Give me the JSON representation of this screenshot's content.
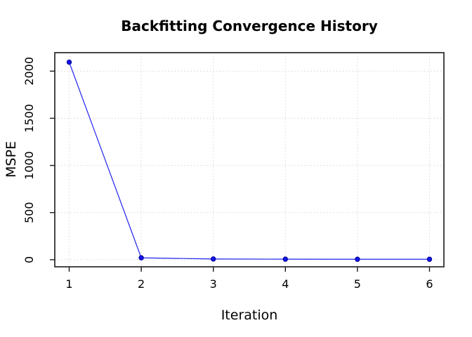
{
  "chart_data": {
    "type": "line",
    "title": "Backfitting Convergence History",
    "xlabel": "Iteration",
    "ylabel": "MSPE",
    "x": [
      1,
      2,
      3,
      4,
      5,
      6
    ],
    "y": [
      2095,
      20,
      8,
      6,
      5,
      5
    ],
    "x_ticks": [
      "1",
      "2",
      "3",
      "4",
      "5",
      "6"
    ],
    "x_tick_values": [
      1,
      2,
      3,
      4,
      5,
      6
    ],
    "y_ticks": [
      "0",
      "500",
      "1000",
      "1500",
      "2000"
    ],
    "y_tick_values": [
      0,
      500,
      1000,
      1500,
      2000
    ],
    "xlim": [
      0.8,
      6.2
    ],
    "ylim": [
      -75,
      2196
    ],
    "grid": "dotted",
    "legend_position": "none",
    "marker": "filled-circle",
    "colors": {
      "series_line": "#2222EE",
      "series_point_fill": "#1414E6",
      "series_point_stroke": "#000099",
      "grid": "#D6D6D6",
      "axis": "#1A1A1A",
      "text": "#000000",
      "background": "#FFFFFF"
    }
  }
}
